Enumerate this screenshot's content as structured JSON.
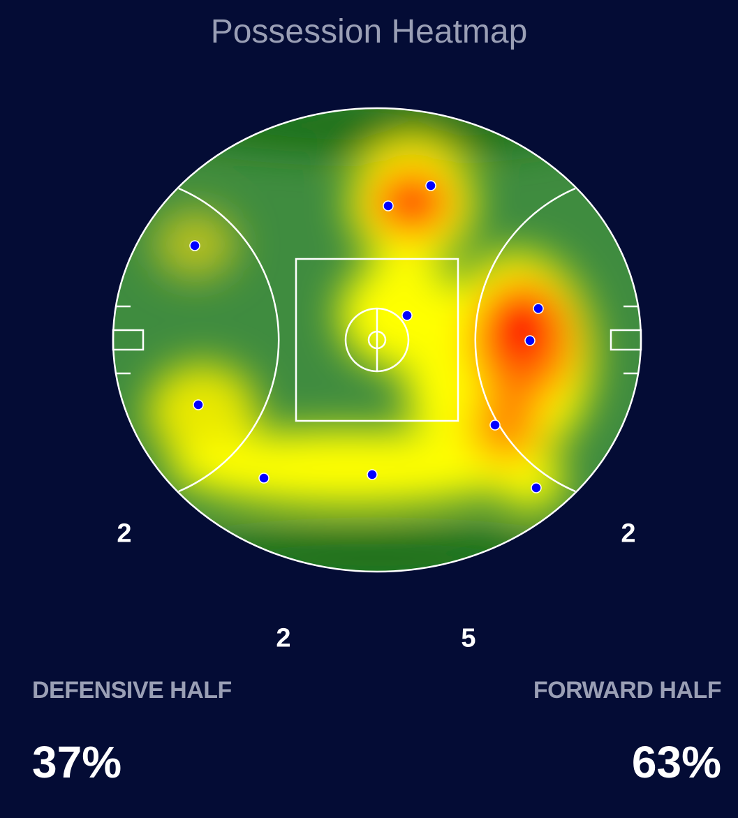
{
  "title": "Possession Heatmap",
  "zone_counts": {
    "left_wing": "2",
    "right_wing": "2",
    "lower_left": "2",
    "lower_right": "5"
  },
  "defensive": {
    "label": "DEFENSIVE HALF",
    "percent": "37%"
  },
  "forward": {
    "label": "FORWARD HALF",
    "percent": "63%"
  }
}
